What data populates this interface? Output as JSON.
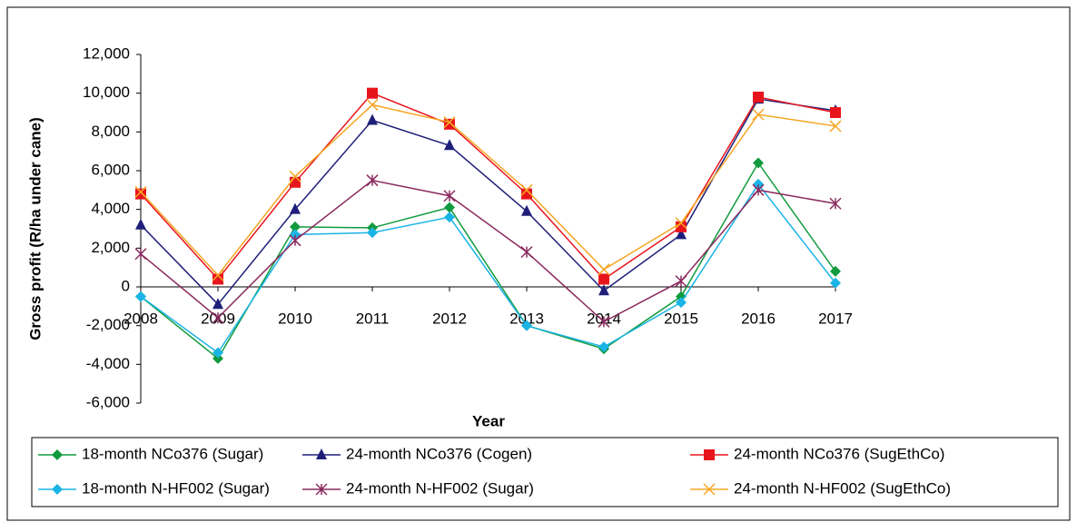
{
  "chart_data": {
    "type": "line",
    "y_label": "Gross profit (R/ha under cane)",
    "x_label": "Year",
    "categories": [
      "2008",
      "2009",
      "2010",
      "2011",
      "2012",
      "2013",
      "2014",
      "2015",
      "2016",
      "2017"
    ],
    "ylim": [
      -6000,
      12000
    ],
    "yticks": [
      {
        "value": -6000,
        "label": "-6,000"
      },
      {
        "value": -4000,
        "label": "-4,000"
      },
      {
        "value": -2000,
        "label": "-2,000"
      },
      0,
      {
        "value": 2000,
        "label": "2,000"
      },
      {
        "value": 4000,
        "label": "4,000"
      },
      {
        "value": 6000,
        "label": "6,000"
      },
      {
        "value": 8000,
        "label": "8,000"
      },
      {
        "value": 10000,
        "label": "10,000"
      },
      {
        "value": 12000,
        "label": "12,000"
      }
    ],
    "legend": "bottom",
    "series": [
      {
        "name": "18-month NCo376 (Sugar)",
        "color": "#119a3e",
        "marker": "diamond",
        "values": [
          -500,
          -3700,
          3100,
          3050,
          4100,
          -2000,
          -3200,
          -500,
          6400,
          800
        ]
      },
      {
        "name": "24-month NCo376 (Cogen)",
        "color": "#1f1f7a",
        "marker": "triangle",
        "values": [
          3200,
          -900,
          4000,
          8600,
          7300,
          3900,
          -200,
          2700,
          9700,
          9100
        ]
      },
      {
        "name": "24-month NCo376 (SugEthCo)",
        "color": "#e8141c",
        "marker": "square",
        "values": [
          4800,
          400,
          5400,
          10000,
          8400,
          4800,
          400,
          3100,
          9800,
          9000
        ]
      },
      {
        "name": "18-month N-HF002 (Sugar)",
        "color": "#1ab4e6",
        "marker": "diamond",
        "values": [
          -500,
          -3400,
          2700,
          2800,
          3600,
          -2000,
          -3100,
          -800,
          5300,
          200
        ]
      },
      {
        "name": "24-month N-HF002 (Sugar)",
        "color": "#8a2a5e",
        "marker": "star",
        "values": [
          1700,
          -1600,
          2400,
          5500,
          4700,
          1800,
          -1800,
          300,
          5000,
          4300
        ]
      },
      {
        "name": "24-month N-HF002 (SugEthCo)",
        "color": "#f5a623",
        "marker": "x",
        "values": [
          4900,
          600,
          5700,
          9400,
          8500,
          5000,
          900,
          3300,
          8900,
          8300
        ]
      }
    ]
  }
}
